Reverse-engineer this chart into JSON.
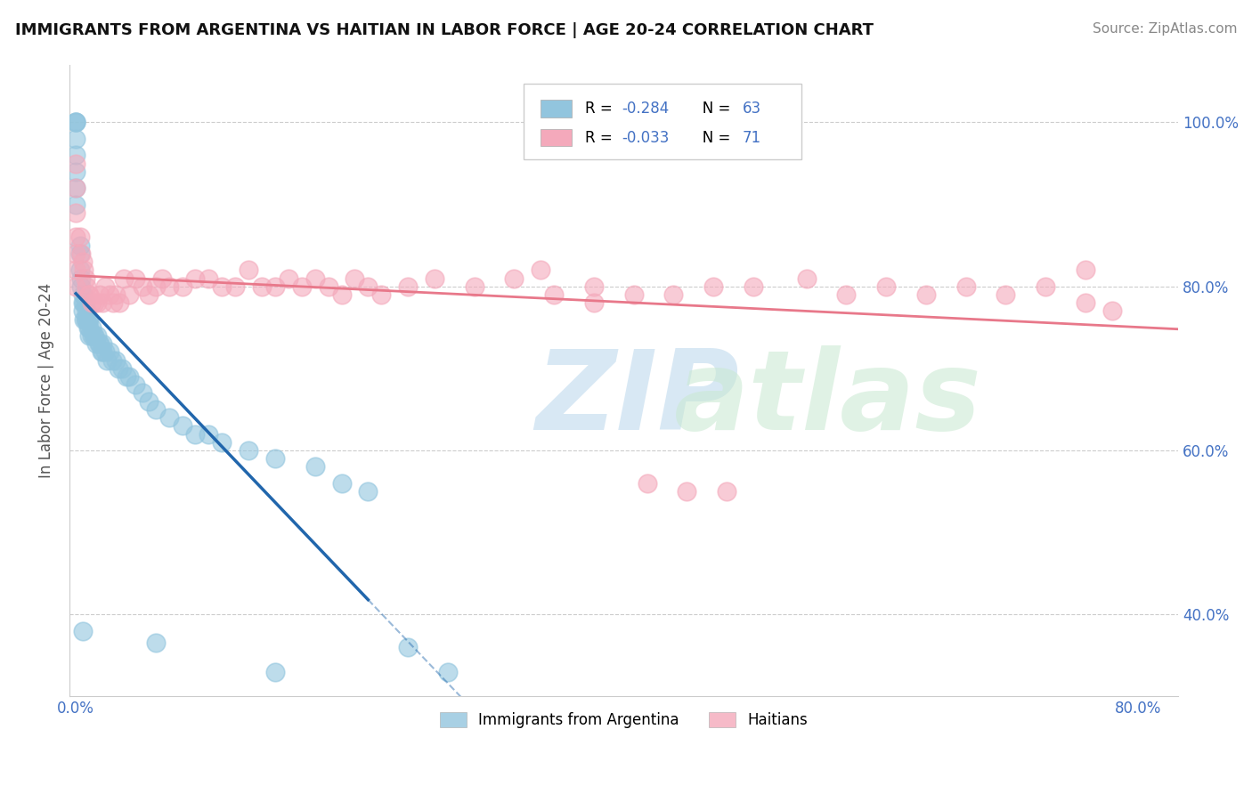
{
  "title": "IMMIGRANTS FROM ARGENTINA VS HAITIAN IN LABOR FORCE | AGE 20-24 CORRELATION CHART",
  "source": "Source: ZipAtlas.com",
  "ylabel": "In Labor Force | Age 20-24",
  "argentina_R": -0.284,
  "argentina_N": 63,
  "haitian_R": -0.033,
  "haitian_N": 71,
  "argentina_color": "#92c5de",
  "haitian_color": "#f4a9bb",
  "argentina_line_color": "#2166ac",
  "haitian_line_color": "#e8788a",
  "background_color": "#ffffff",
  "xlim": [
    -0.005,
    0.83
  ],
  "ylim": [
    0.3,
    1.07
  ],
  "y_tick_positions": [
    0.4,
    0.6,
    0.8,
    1.0
  ],
  "y_tick_labels": [
    "40.0%",
    "60.0%",
    "80.0%",
    "100.0%"
  ],
  "x_tick_positions": [
    0.0,
    0.1,
    0.2,
    0.3,
    0.4,
    0.5,
    0.6,
    0.7,
    0.8
  ],
  "grid_color": "#cccccc",
  "r_n_color": "#4472c4",
  "title_fontsize": 13,
  "source_fontsize": 11,
  "tick_color": "#4472c4",
  "tick_fontsize": 12,
  "ylabel_fontsize": 12
}
